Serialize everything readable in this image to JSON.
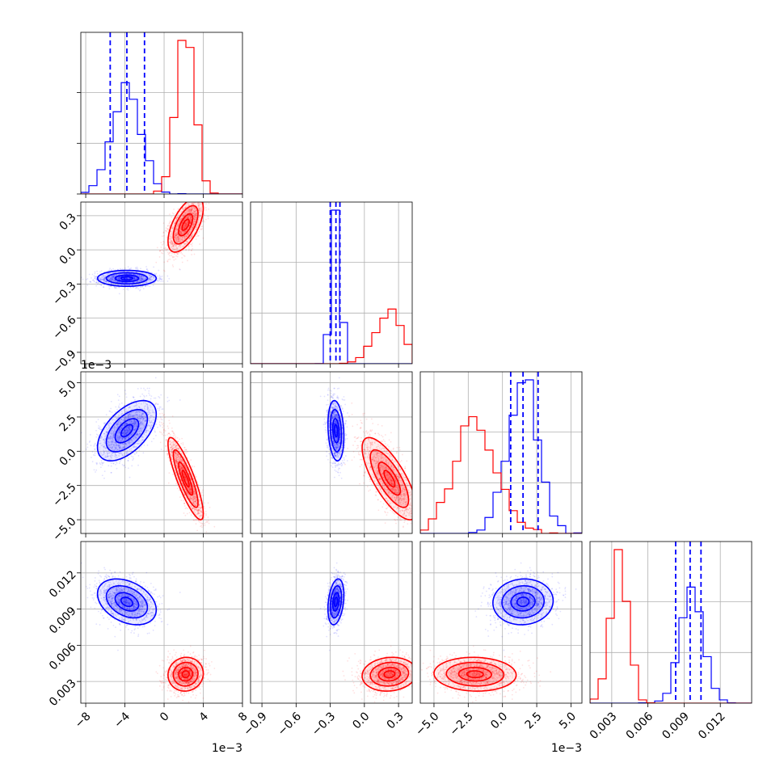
{
  "chart_data": {
    "type": "corner",
    "grid": true,
    "colors": {
      "series_a": "#0000ff",
      "series_b": "#ff0000"
    },
    "params": [
      {
        "lim": [
          -0.0085,
          0.008
        ],
        "ticks": [
          -0.008,
          -0.004,
          0,
          0.004,
          0.008
        ],
        "tick_labels": [
          "−8",
          "−4",
          "0",
          "4",
          "8"
        ],
        "offset": "1e−3"
      },
      {
        "lim": [
          -1.0,
          0.42
        ],
        "ticks": [
          -0.9,
          -0.6,
          -0.3,
          0.0,
          0.3
        ],
        "tick_labels": [
          "−0.9",
          "−0.6",
          "−0.3",
          "0.0",
          "0.3"
        ],
        "offset": ""
      },
      {
        "lim": [
          -0.006,
          0.0058
        ],
        "ticks": [
          -0.005,
          -0.0025,
          0,
          0.0025,
          0.005
        ],
        "tick_labels": [
          "−5.0",
          "−2.5",
          "0.0",
          "2.5",
          "5.0"
        ],
        "offset": "1e−3"
      },
      {
        "lim": [
          0.0012,
          0.0146
        ],
        "ticks": [
          0.003,
          0.006,
          0.009,
          0.012
        ],
        "tick_labels": [
          "0.003",
          "0.006",
          "0.009",
          "0.012"
        ],
        "offset": ""
      }
    ],
    "series": [
      {
        "color": "#0000ff",
        "mean": [
          -0.0038,
          -0.25,
          0.0015,
          0.0096
        ],
        "sd": [
          0.0015,
          0.035,
          0.0011,
          0.00095
        ],
        "corr": [
          [
            1,
            0.0,
            0.55,
            -0.35
          ],
          [
            0.0,
            1,
            -0.2,
            0.3
          ],
          [
            0.55,
            -0.2,
            1,
            0.05
          ],
          [
            -0.35,
            0.3,
            0.05,
            1
          ]
        ],
        "quantile_lines": [
          [
            -0.0055,
            -0.0038,
            -0.002
          ],
          [
            -0.3,
            -0.25,
            -0.215
          ],
          [
            0.0006,
            0.0015,
            0.0026
          ],
          [
            0.0083,
            0.0095,
            0.0104
          ]
        ]
      },
      {
        "color": "#ff0000",
        "mean": [
          0.0022,
          0.22,
          -0.002,
          0.0036
        ],
        "sd": [
          0.0009,
          0.12,
          0.0015,
          0.0007
        ],
        "corr": [
          [
            1,
            0.6,
            -0.85,
            0.05
          ],
          [
            0.6,
            1,
            -0.75,
            0.1
          ],
          [
            -0.85,
            -0.75,
            1,
            -0.05
          ],
          [
            0.05,
            0.1,
            -0.05,
            1
          ]
        ],
        "quantile_lines": null
      }
    ]
  }
}
